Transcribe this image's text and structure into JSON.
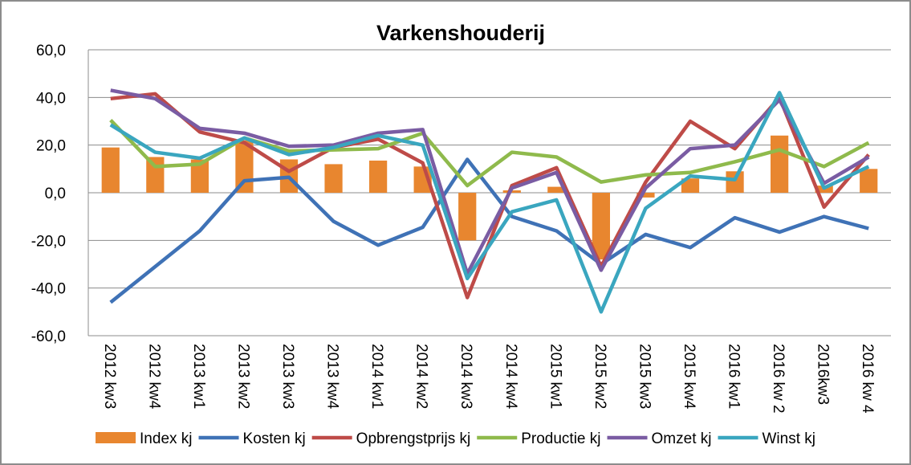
{
  "chart_data": {
    "type": "combo",
    "title": "Varkenshouderij",
    "categories": [
      "2012 kw3",
      "2012 kw4",
      "2013 kw1",
      "2013 kw2",
      "2013 kw3",
      "2013 kw4",
      "2014 kw1",
      "2014 kw2",
      "2014 kw3",
      "2014 kw4",
      "2015 kw1",
      "2015 kw2",
      "2015 kw3",
      "2015 kw4",
      "2016 kw1",
      "2016 kw 2",
      "2016kw3",
      "2016 kw 4"
    ],
    "series": [
      {
        "name": "Index kj",
        "type": "bar",
        "color": "#e8862f",
        "values": [
          19,
          15,
          14,
          22,
          14,
          12,
          13.5,
          11,
          -20,
          1,
          2.5,
          -28,
          -2,
          6,
          9,
          24,
          3,
          10
        ]
      },
      {
        "name": "Kosten kj",
        "type": "line",
        "color": "#3f72b6",
        "values": [
          -46,
          -31,
          -16,
          5,
          6.5,
          -12,
          -22,
          -14.5,
          14,
          -10,
          -16,
          -30,
          -17.5,
          -23,
          -10.5,
          -16.5,
          -10,
          -15
        ]
      },
      {
        "name": "Opbrengstprijs kj",
        "type": "line",
        "color": "#be4b48",
        "values": [
          39.5,
          41.5,
          25.5,
          21,
          9,
          19,
          22.5,
          12.5,
          -44,
          3,
          10.5,
          -31,
          4.5,
          30,
          18.5,
          40,
          -6,
          16
        ]
      },
      {
        "name": "Productie kj",
        "type": "line",
        "color": "#8fba4c",
        "values": [
          30.5,
          11,
          12,
          23,
          17.5,
          18,
          18.5,
          25,
          3,
          17,
          15,
          4.5,
          7.5,
          8.5,
          13,
          18,
          11,
          21
        ]
      },
      {
        "name": "Omzet kj",
        "type": "line",
        "color": "#7a5ca3",
        "values": [
          43,
          39.5,
          27,
          25,
          19.5,
          20,
          25,
          26.5,
          -34,
          2,
          8.5,
          -32.5,
          2,
          18.5,
          20,
          39,
          4,
          15
        ]
      },
      {
        "name": "Winst kj",
        "type": "line",
        "color": "#3aa6bf",
        "values": [
          28.5,
          17,
          14.5,
          23,
          16,
          19,
          24,
          20,
          -36,
          -8,
          -3,
          -50,
          -6.5,
          7,
          5.5,
          42,
          2,
          11
        ]
      }
    ],
    "ylim": [
      -60,
      60
    ],
    "yticks": [
      {
        "value": -60,
        "label": "-60,0"
      },
      {
        "value": -40,
        "label": "-40,0"
      },
      {
        "value": -20,
        "label": "-20,0"
      },
      {
        "value": 0,
        "label": "0,0"
      },
      {
        "value": 20,
        "label": "20,0"
      },
      {
        "value": 40,
        "label": "40,0"
      },
      {
        "value": 60,
        "label": "60,0"
      }
    ],
    "grid": true,
    "legend": "bottom"
  }
}
